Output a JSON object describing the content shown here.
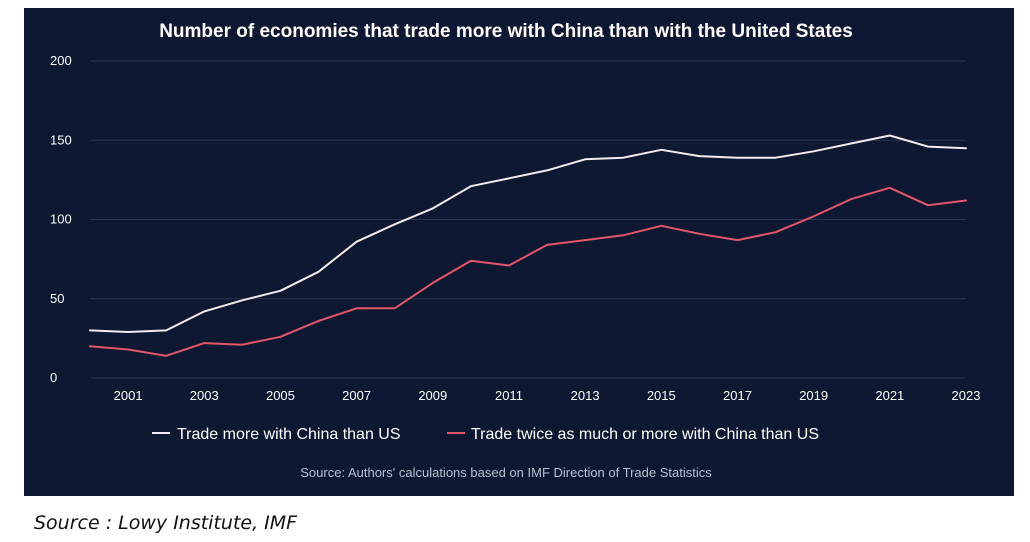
{
  "chart_data": {
    "type": "line",
    "title": "Number of economies that trade more with China than with the United States",
    "x": [
      2000,
      2001,
      2002,
      2003,
      2004,
      2005,
      2006,
      2007,
      2008,
      2009,
      2010,
      2011,
      2012,
      2013,
      2014,
      2015,
      2016,
      2017,
      2018,
      2019,
      2020,
      2021,
      2022,
      2023
    ],
    "x_tick_labels": [
      "2001",
      "2003",
      "2005",
      "2007",
      "2009",
      "2011",
      "2013",
      "2015",
      "2017",
      "2019",
      "2021",
      "2023"
    ],
    "y_tick_labels": [
      "0",
      "50",
      "100",
      "150",
      "200"
    ],
    "ylim": [
      0,
      200
    ],
    "grid": true,
    "legend_position": "bottom",
    "series": [
      {
        "name": "Trade more with China than US",
        "color": "#f4ecec",
        "values": [
          30,
          29,
          30,
          42,
          49,
          55,
          67,
          86,
          97,
          107,
          121,
          126,
          131,
          138,
          139,
          144,
          140,
          139,
          139,
          143,
          148,
          153,
          146,
          145
        ]
      },
      {
        "name": "Trade twice as much or more with China than US",
        "color": "#e4566a",
        "values": [
          20,
          18,
          14,
          22,
          21,
          26,
          36,
          44,
          44,
          60,
          74,
          71,
          84,
          87,
          90,
          96,
          91,
          87,
          92,
          102,
          113,
          120,
          109,
          112
        ]
      }
    ],
    "source_note": "Source: Authors' calculations based on IMF Direction of Trade Statistics"
  },
  "colors": {
    "background": "#0f1833",
    "gridline": "#2b3452",
    "text": "#ffffff"
  },
  "page_caption": "Source : Lowy Institute, IMF"
}
